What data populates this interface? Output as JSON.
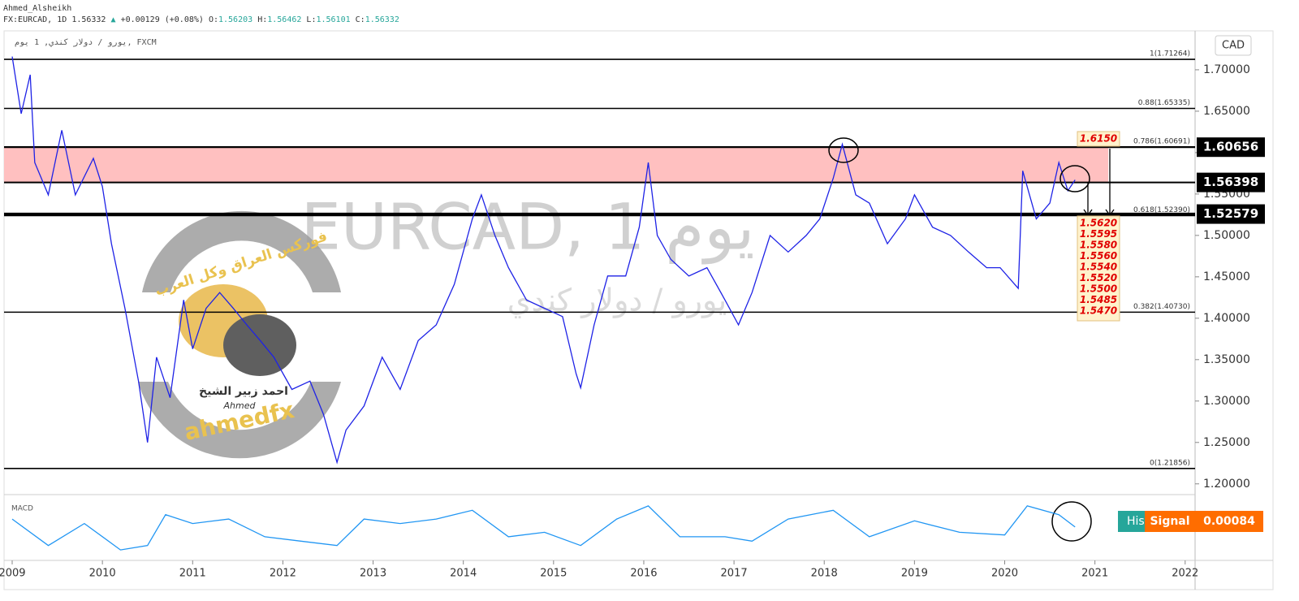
{
  "chart_data": {
    "type": "line",
    "user": "Ahmed_Alsheikh",
    "title": "FX:EURCAD, 1D",
    "last": 1.56332,
    "change": "+0.00129 (+0.08%)",
    "ohlc": [
      {
        "label": "O:",
        "value": 1.56203
      },
      {
        "label": "H:",
        "value": 1.56462
      },
      {
        "label": "L:",
        "value": 1.56101
      },
      {
        "label": "C:",
        "value": 1.56332
      }
    ],
    "source": "يورو / دولار كندي, 1 يوم, FXCM",
    "currency": "CAD",
    "watermark": "EURCAD, 1 يوم",
    "watermark_sub": "يورو / دولار كندي",
    "logo_texts": [
      "فوركس العراق وكل العرب",
      "احمد زبير الشيخ",
      "Ahmed",
      "ahmedfx"
    ],
    "xlim": [
      2008.91,
      2022.11
    ],
    "xticks": [
      2009,
      2010,
      2011,
      2012,
      2013,
      2014,
      2015,
      2016,
      2017,
      2018,
      2019,
      2020,
      2021,
      2022
    ],
    "ylim": [
      1.188,
      1.747
    ],
    "yticks": [
      {
        "value": 1.7,
        "label": "1.70000"
      },
      {
        "value": 1.65,
        "label": "1.65000"
      },
      {
        "value": 1.6,
        "label": "1.60000"
      },
      {
        "value": 1.55,
        "label": "1.55000"
      },
      {
        "value": 1.5,
        "label": "1.50000"
      },
      {
        "value": 1.45,
        "label": "1.45000"
      },
      {
        "value": 1.4,
        "label": "1.40000"
      },
      {
        "value": 1.35,
        "label": "1.35000"
      },
      {
        "value": 1.3,
        "label": "1.30000"
      },
      {
        "value": 1.25,
        "label": "1.25000"
      },
      {
        "value": 1.2,
        "label": "1.20000"
      }
    ],
    "x": [
      2009.0,
      2009.1,
      2009.2,
      2009.25,
      2009.4,
      2009.55,
      2009.7,
      2009.9,
      2010.0,
      2010.1,
      2010.25,
      2010.4,
      2010.5,
      2010.6,
      2010.75,
      2010.9,
      2011.0,
      2011.15,
      2011.3,
      2011.45,
      2011.6,
      2011.75,
      2011.9,
      2012.1,
      2012.3,
      2012.45,
      2012.6,
      2012.7,
      2012.9,
      2013.1,
      2013.3,
      2013.5,
      2013.7,
      2013.9,
      2014.1,
      2014.2,
      2014.35,
      2014.5,
      2014.7,
      2014.9,
      2015.1,
      2015.25,
      2015.3,
      2015.45,
      2015.6,
      2015.8,
      2015.95,
      2016.05,
      2016.15,
      2016.3,
      2016.5,
      2016.7,
      2016.9,
      2017.05,
      2017.2,
      2017.4,
      2017.6,
      2017.8,
      2017.95,
      2018.1,
      2018.2,
      2018.35,
      2018.5,
      2018.7,
      2018.9,
      2019.0,
      2019.2,
      2019.4,
      2019.6,
      2019.8,
      2019.95,
      2020.15,
      2020.2,
      2020.35,
      2020.5,
      2020.6,
      2020.7,
      2020.78
    ],
    "series": [
      {
        "color": "#1e22e6",
        "values": [
          1.716,
          1.647,
          1.694,
          1.588,
          1.549,
          1.627,
          1.549,
          1.593,
          1.559,
          1.49,
          1.412,
          1.324,
          1.25,
          1.353,
          1.304,
          1.422,
          1.363,
          1.412,
          1.431,
          1.412,
          1.392,
          1.373,
          1.353,
          1.314,
          1.324,
          1.284,
          1.226,
          1.265,
          1.294,
          1.353,
          1.314,
          1.373,
          1.392,
          1.441,
          1.52,
          1.549,
          1.5,
          1.461,
          1.422,
          1.412,
          1.402,
          1.333,
          1.316,
          1.392,
          1.451,
          1.451,
          1.51,
          1.588,
          1.5,
          1.471,
          1.451,
          1.461,
          1.422,
          1.392,
          1.431,
          1.5,
          1.48,
          1.5,
          1.52,
          1.569,
          1.61,
          1.549,
          1.539,
          1.49,
          1.52,
          1.549,
          1.51,
          1.5,
          1.48,
          1.461,
          1.461,
          1.436,
          1.578,
          1.52,
          1.539,
          1.588,
          1.554,
          1.567
        ]
      }
    ],
    "levels": [
      1.60656,
      1.56398,
      1.52579
    ],
    "zone_color": "#ffc0c0",
    "fib_levels": [
      {
        "label": "1(1.71264)",
        "value": 1.71264
      },
      {
        "label": "0.88(1.65335)",
        "value": 1.65335
      },
      {
        "label": "0.786(1.60691)",
        "value": 1.60691
      },
      {
        "label": "0.618(1.52390)",
        "value": 1.5239
      },
      {
        "label": "0.382(1.40730)",
        "value": 1.4073
      },
      {
        "label": "0(1.21856)",
        "value": 1.21856
      }
    ],
    "target_top": "1.6150",
    "targets": [
      "1.5620",
      "1.5595",
      "1.5580",
      "1.5560",
      "1.5540",
      "1.5520",
      "1.5500",
      "1.5485",
      "1.5470"
    ],
    "macd": {
      "label": "MACD",
      "hist_label": "His",
      "signal_label": "Signal",
      "signal": 0.00084,
      "color": "#2196f3",
      "ylim": [
        -0.035,
        0.035
      ],
      "x": [
        2009.0,
        2009.4,
        2009.8,
        2010.2,
        2010.5,
        2010.7,
        2011.0,
        2011.4,
        2011.8,
        2012.2,
        2012.6,
        2012.9,
        2013.3,
        2013.7,
        2014.1,
        2014.5,
        2014.9,
        2015.3,
        2015.7,
        2016.05,
        2016.4,
        2016.9,
        2017.2,
        2017.6,
        2018.1,
        2018.5,
        2019.0,
        2019.5,
        2020.0,
        2020.25,
        2020.6,
        2020.78
      ],
      "values": [
        0.01,
        -0.02,
        0.005,
        -0.025,
        -0.02,
        0.015,
        0.005,
        0.01,
        -0.01,
        -0.015,
        -0.02,
        0.01,
        0.005,
        0.01,
        0.02,
        -0.01,
        -0.005,
        -0.02,
        0.01,
        0.025,
        -0.01,
        -0.01,
        -0.015,
        0.01,
        0.02,
        -0.01,
        0.008,
        -0.005,
        -0.008,
        0.025,
        0.015,
        0.001
      ]
    }
  }
}
